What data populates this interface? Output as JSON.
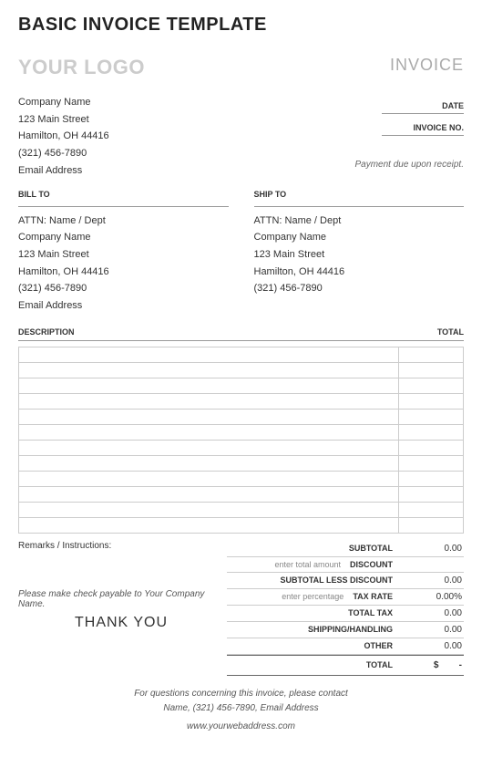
{
  "page_title": "BASIC INVOICE TEMPLATE",
  "logo_text": "YOUR LOGO",
  "invoice_word": "INVOICE",
  "meta": {
    "date_label": "DATE",
    "invoice_no_label": "INVOICE NO."
  },
  "from": {
    "company": "Company Name",
    "street": "123 Main Street",
    "city": "Hamilton, OH  44416",
    "phone": "(321) 456-7890",
    "email": "Email Address"
  },
  "payment_terms": "Payment due upon receipt.",
  "bill_to": {
    "header": "BILL TO",
    "attn": "ATTN: Name / Dept",
    "company": "Company Name",
    "street": "123 Main Street",
    "city": "Hamilton, OH  44416",
    "phone": "(321) 456-7890",
    "email": "Email Address"
  },
  "ship_to": {
    "header": "SHIP TO",
    "attn": "ATTN: Name / Dept",
    "company": "Company Name",
    "street": "123 Main Street",
    "city": "Hamilton, OH  44416",
    "phone": "(321) 456-7890"
  },
  "line_items": {
    "desc_header": "DESCRIPTION",
    "total_header": "TOTAL",
    "row_count": 12
  },
  "remarks_label": "Remarks / Instructions:",
  "totals": {
    "subtotal": {
      "label": "SUBTOTAL",
      "value": "0.00"
    },
    "discount": {
      "hint": "enter total amount",
      "label": "DISCOUNT",
      "value": ""
    },
    "sub_less": {
      "label": "SUBTOTAL LESS DISCOUNT",
      "value": "0.00"
    },
    "tax_rate": {
      "hint": "enter percentage",
      "label": "TAX RATE",
      "value": "0.00%"
    },
    "total_tax": {
      "label": "TOTAL TAX",
      "value": "0.00"
    },
    "shipping": {
      "label": "SHIPPING/HANDLING",
      "value": "0.00"
    },
    "other": {
      "label": "OTHER",
      "value": "0.00"
    },
    "final": {
      "label": "TOTAL",
      "currency": "$",
      "value": "-"
    }
  },
  "payable_text": "Please make check payable to Your Company Name.",
  "thank_you": "THANK YOU",
  "footer": {
    "line1": "For questions concerning this invoice, please contact",
    "line2": "Name, (321) 456-7890, Email Address",
    "web": "www.yourwebaddress.com"
  }
}
